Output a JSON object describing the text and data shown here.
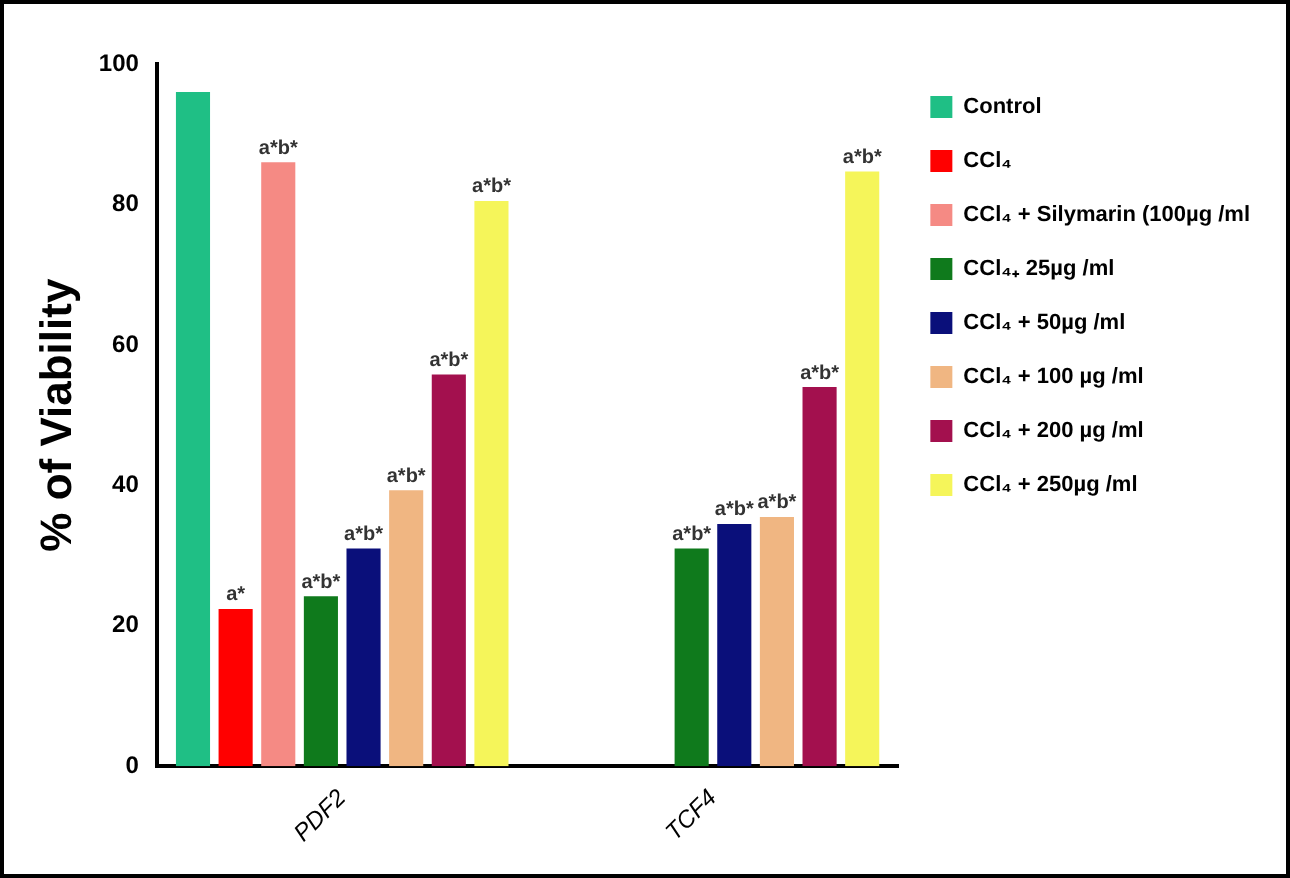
{
  "chart_data": {
    "type": "bar",
    "ylabel": "% of Viability",
    "categories": [
      "PDF2",
      "TCF4"
    ],
    "ylim": [
      0,
      100
    ],
    "yticks": [
      0,
      20,
      40,
      60,
      80,
      100
    ],
    "grid": false,
    "legend": "right",
    "series": [
      {
        "name": "Control",
        "color": "#1fbf85",
        "values": [
          96,
          null
        ],
        "value_labels": [
          null,
          null
        ]
      },
      {
        "name": "CCl₄",
        "color": "#ff0000",
        "values": [
          22.4,
          null
        ],
        "value_labels": [
          "a*",
          null
        ]
      },
      {
        "name": "CCl₄ + Silymarin (100µg /ml",
        "color": "#f58a84",
        "values": [
          86,
          null
        ],
        "value_labels": [
          "a*b*",
          null
        ]
      },
      {
        "name": "CCl₄₊ 25µg /ml",
        "color": "#0f7a1c",
        "values": [
          24.2,
          31
        ],
        "value_labels": [
          "a*b*",
          "a*b*"
        ]
      },
      {
        "name": "CCl₄ + 50µg /ml",
        "color": "#0a0f7a",
        "values": [
          31,
          34.5
        ],
        "value_labels": [
          "a*b*",
          "a*b*"
        ]
      },
      {
        "name": "CCl₄ + 100 µg /ml",
        "color": "#f0b682",
        "values": [
          39.3,
          35.5
        ],
        "value_labels": [
          "a*b*",
          "a*b*"
        ]
      },
      {
        "name": "CCl₄ + 200 µg /ml",
        "color": "#a3104e",
        "values": [
          55.8,
          54
        ],
        "value_labels": [
          "a*b*",
          "a*b*"
        ]
      },
      {
        "name": "CCl₄ + 250µg /ml",
        "color": "#f5f55a",
        "values": [
          80.5,
          84.7
        ],
        "value_labels": [
          "a*b*",
          "a*b*"
        ]
      }
    ]
  }
}
